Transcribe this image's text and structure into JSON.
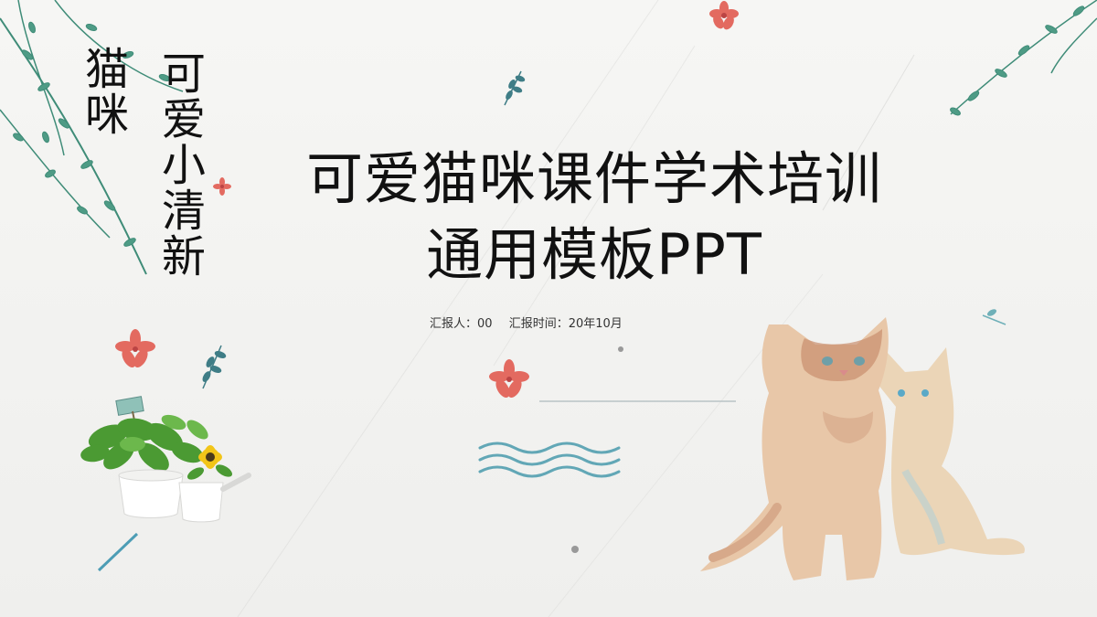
{
  "side_title": {
    "col1": "猫咪",
    "col2": "可爱小清新"
  },
  "title": {
    "line1": "可爱猫咪课件学术培训",
    "line2": "通用模板PPT"
  },
  "meta": {
    "presenter": "汇报人：00",
    "time": "汇报时间：20年10月"
  },
  "colors": {
    "text": "#111111",
    "leaf": "#3f8c78",
    "flower": "#e36a60",
    "wave": "#62a7b6",
    "cat_tabby": "#c98f6d",
    "cat_cream": "#ead0ad",
    "plant": "#4b9a33",
    "daisy": "#f2c518"
  },
  "icons": [
    "vine-icon",
    "flower-icon",
    "leaf-sprig-icon",
    "potted-plant-icon",
    "wave-icon",
    "cat-illustration"
  ]
}
